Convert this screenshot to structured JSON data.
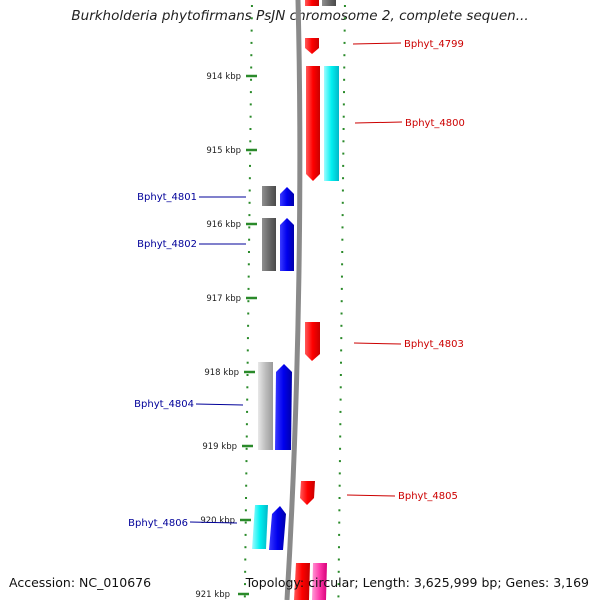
{
  "title": "Burkholderia phytofirmans PsJN chromosome 2, complete sequen...",
  "footer": {
    "accession": "Accession: NC_010676",
    "topology": "Topology: circular; Length: 3,625,999 bp; Genes: 3,169"
  },
  "colors": {
    "forward_label": "#cc0000",
    "reverse_label": "#000099",
    "gc_tick": "#2a8a2a",
    "backbone": "#888888"
  },
  "scale": {
    "labels": [
      "914 kbp",
      "915 kbp",
      "916 kbp",
      "917 kbp",
      "918 kbp",
      "919 kbp",
      "920 kbp",
      "921 kbp"
    ]
  },
  "genes": [
    {
      "label": "Bphyt_4799",
      "strand": "forward"
    },
    {
      "label": "Bphyt_4800",
      "strand": "forward"
    },
    {
      "label": "Bphyt_4801",
      "strand": "reverse"
    },
    {
      "label": "Bphyt_4802",
      "strand": "reverse"
    },
    {
      "label": "Bphyt_4803",
      "strand": "forward"
    },
    {
      "label": "Bphyt_4804",
      "strand": "reverse"
    },
    {
      "label": "Bphyt_4805",
      "strand": "forward"
    },
    {
      "label": "Bphyt_4806",
      "strand": "reverse"
    }
  ]
}
